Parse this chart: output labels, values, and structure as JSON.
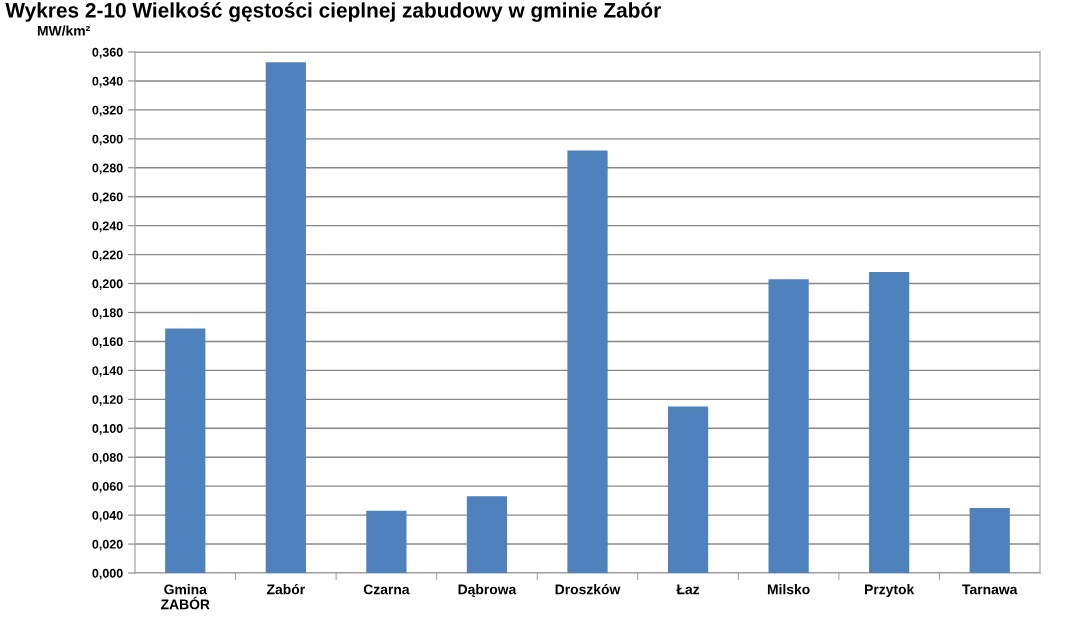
{
  "chart_data": {
    "type": "bar",
    "title": "Wykres 2-10 Wielkość gęstości cieplnej zabudowy w gminie Zabór",
    "ylabel": "MW/km²",
    "categories": [
      "Gmina\nZABÓR",
      "Zabór",
      "Czarna",
      "Dąbrowa",
      "Droszków",
      "Łaz",
      "Milsko",
      "Przytok",
      "Tarnawa"
    ],
    "values": [
      0.169,
      0.353,
      0.043,
      0.053,
      0.292,
      0.115,
      0.203,
      0.208,
      0.045
    ],
    "color": "#4f81bd",
    "ylim": [
      0,
      0.36
    ],
    "yticks": [
      {
        "value": 0,
        "label": "0,000"
      },
      {
        "value": 0.02,
        "label": "0,020"
      },
      {
        "value": 0.04,
        "label": "0,040"
      },
      {
        "value": 0.06,
        "label": "0,060"
      },
      {
        "value": 0.08,
        "label": "0,080"
      },
      {
        "value": 0.1,
        "label": "0,100"
      },
      {
        "value": 0.12,
        "label": "0,120"
      },
      {
        "value": 0.14,
        "label": "0,140"
      },
      {
        "value": 0.16,
        "label": "0,160"
      },
      {
        "value": 0.18,
        "label": "0,180"
      },
      {
        "value": 0.2,
        "label": "0,200"
      },
      {
        "value": 0.22,
        "label": "0,220"
      },
      {
        "value": 0.24,
        "label": "0,240"
      },
      {
        "value": 0.26,
        "label": "0,260"
      },
      {
        "value": 0.28,
        "label": "0,280"
      },
      {
        "value": 0.3,
        "label": "0,300"
      },
      {
        "value": 0.32,
        "label": "0,320"
      },
      {
        "value": 0.34,
        "label": "0,340"
      },
      {
        "value": 0.36,
        "label": "0,360"
      }
    ],
    "grid": "y",
    "legend": false
  }
}
